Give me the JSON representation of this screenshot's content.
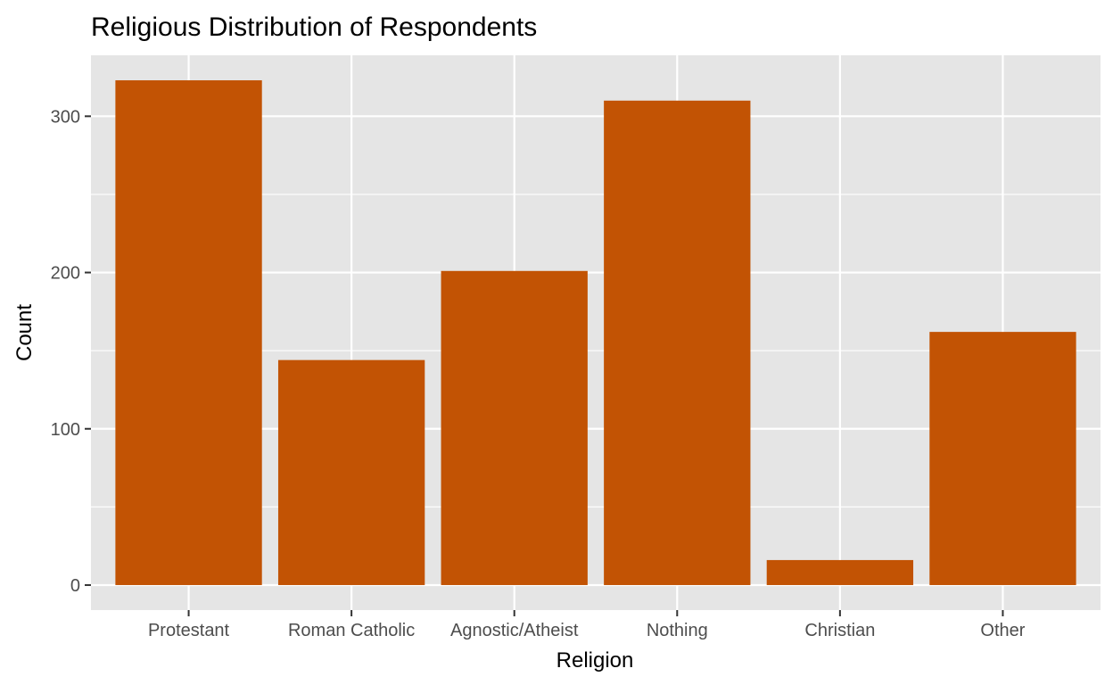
{
  "chart_data": {
    "type": "bar",
    "title": "Religious Distribution of Respondents",
    "xlabel": "Religion",
    "ylabel": "Count",
    "categories": [
      "Protestant",
      "Roman Catholic",
      "Agnostic/Atheist",
      "Nothing",
      "Christian",
      "Other"
    ],
    "values": [
      323,
      144,
      201,
      310,
      16,
      162
    ],
    "ylim": [
      -16,
      339
    ],
    "yticks": [
      0,
      100,
      200,
      300
    ],
    "ytick_labels": [
      "0",
      "100",
      "200",
      "300"
    ],
    "grid": true,
    "legend": "none",
    "colors": {
      "bar": "#C25304",
      "panel": "#E5E5E5"
    }
  }
}
